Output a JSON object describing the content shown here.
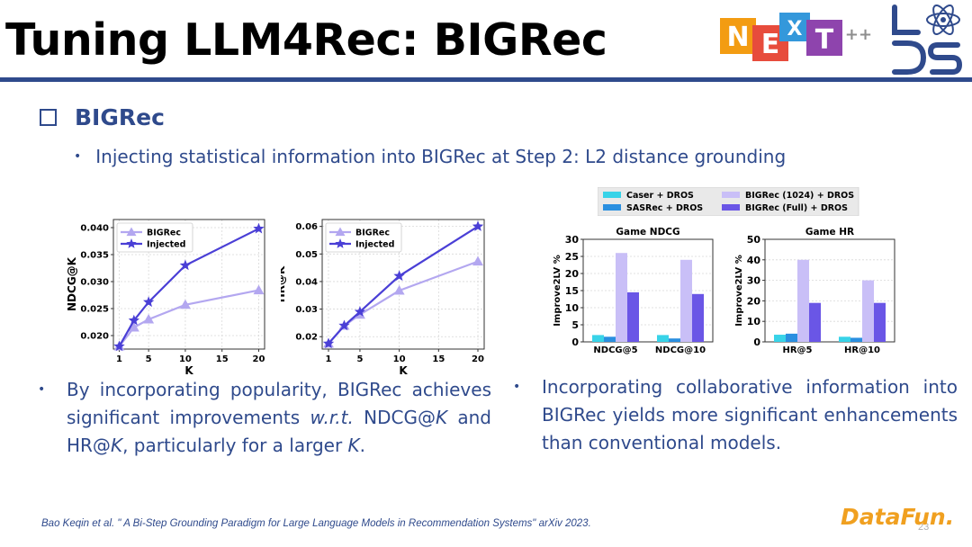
{
  "slide": {
    "title": "Tuning LLM4Rec: BIGRec",
    "heading": "BIGRec",
    "bullet_main": "Injecting statistical information into BIGRec at Step 2: L2 distance grounding",
    "left_paragraph": {
      "t1": "By incorporating popularity, BIGRec achieves significant improvements ",
      "t2": "w.r.t.",
      "t3": " NDCG@",
      "t4": "K",
      "t5": " and HR@",
      "t6": "K",
      "t7": ", particularly for a larger ",
      "t8": "K",
      "t9": "."
    },
    "right_paragraph": "Incorporating collaborative information into BIGRec yields more significant enhancements than conventional models.",
    "reference": "Bao Keqin et al. \" A Bi-Step Grounding Paradigm for Large Language Models in Recommendation Systems\" arXiv 2023.",
    "page_number": "23"
  },
  "logos": {
    "next_letters": [
      "N",
      "E",
      "X",
      "T"
    ],
    "next_suffix": "++",
    "datafun": "DataFun."
  },
  "colors": {
    "title_rule": "#2f4a8c",
    "text_blue": "#2f4a8c",
    "bigrec_light": "#b3a7f0",
    "injected_dark": "#4a3fd6",
    "caser": "#38d3e8",
    "sasrec": "#2a8fe0",
    "bigrec_1024": "#c9bff7",
    "bigrec_full": "#6a56e6"
  },
  "chart_data": [
    {
      "type": "line",
      "title": "",
      "xlabel": "K",
      "ylabel": "NDCG@K",
      "x": [
        1,
        3,
        5,
        10,
        20
      ],
      "xticks": [
        1,
        5,
        10,
        15,
        20
      ],
      "yticks": [
        0.02,
        0.025,
        0.03,
        0.035,
        0.04
      ],
      "ytick_labels": [
        "0.020",
        "0.025",
        "0.030",
        "0.035",
        "0.040"
      ],
      "xlim": [
        0.2,
        20.8
      ],
      "ylim": [
        0.0175,
        0.0415
      ],
      "legend_position": "top-left",
      "series": [
        {
          "name": "BIGRec",
          "marker": "triangle",
          "values": [
            0.018,
            0.0215,
            0.023,
            0.0257,
            0.0284
          ]
        },
        {
          "name": "Injected",
          "marker": "star",
          "values": [
            0.018,
            0.0228,
            0.0262,
            0.033,
            0.0398
          ]
        }
      ]
    },
    {
      "type": "line",
      "title": "",
      "xlabel": "K",
      "ylabel": "HR@K",
      "x": [
        1,
        3,
        5,
        10,
        20
      ],
      "xticks": [
        1,
        5,
        10,
        15,
        20
      ],
      "yticks": [
        0.02,
        0.03,
        0.04,
        0.05,
        0.06
      ],
      "ytick_labels": [
        "0.02",
        "0.03",
        "0.04",
        "0.05",
        "0.06"
      ],
      "xlim": [
        0.2,
        20.8
      ],
      "ylim": [
        0.0155,
        0.0625
      ],
      "legend_position": "top-left",
      "series": [
        {
          "name": "BIGRec",
          "marker": "triangle",
          "values": [
            0.0175,
            0.024,
            0.028,
            0.0367,
            0.0473
          ]
        },
        {
          "name": "Injected",
          "marker": "star",
          "values": [
            0.0175,
            0.024,
            0.029,
            0.042,
            0.06
          ]
        }
      ]
    },
    {
      "type": "bar",
      "title": "Game NDCG",
      "xlabel": "",
      "ylabel": "Improve2LV %",
      "categories": [
        "NDCG@5",
        "NDCG@10"
      ],
      "yticks": [
        0,
        5,
        10,
        15,
        20,
        25,
        30
      ],
      "ylim": [
        0,
        30
      ],
      "series": [
        {
          "name": "Caser + DROS",
          "values": [
            2.0,
            2.0
          ]
        },
        {
          "name": "SASRec + DROS",
          "values": [
            1.5,
            1.0
          ]
        },
        {
          "name": "BIGRec (1024) + DROS",
          "values": [
            26.0,
            24.0
          ]
        },
        {
          "name": "BIGRec (Full) + DROS",
          "values": [
            14.5,
            14.0
          ]
        }
      ]
    },
    {
      "type": "bar",
      "title": "Game HR",
      "xlabel": "",
      "ylabel": "Improve2LV %",
      "categories": [
        "HR@5",
        "HR@10"
      ],
      "yticks": [
        0,
        10,
        20,
        30,
        40,
        50
      ],
      "ylim": [
        0,
        50
      ],
      "series": [
        {
          "name": "Caser + DROS",
          "values": [
            3.5,
            2.5
          ]
        },
        {
          "name": "SASRec + DROS",
          "values": [
            4.0,
            2.0
          ]
        },
        {
          "name": "BIGRec (1024) + DROS",
          "values": [
            40.0,
            30.0
          ]
        },
        {
          "name": "BIGRec (Full) + DROS",
          "values": [
            19.0,
            19.0
          ]
        }
      ]
    }
  ]
}
